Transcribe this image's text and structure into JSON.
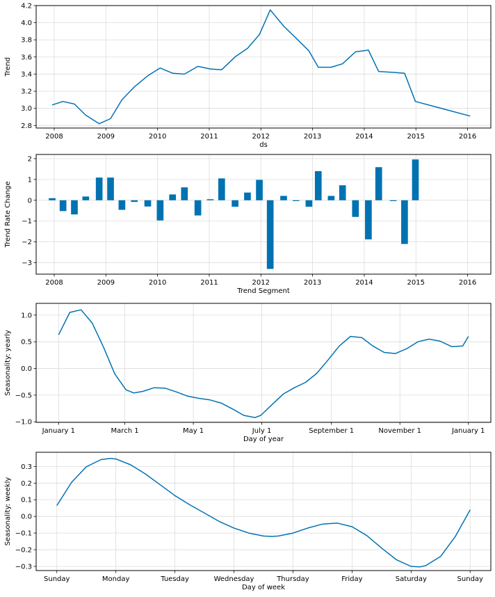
{
  "colors": {
    "series": "#0072B2",
    "grid": "#dcdcdc",
    "frame": "#000000"
  },
  "chart_data": [
    {
      "id": "trend",
      "type": "line",
      "xlabel": "ds",
      "ylabel": "Trend",
      "x_type": "year",
      "xlim": [
        2007.65,
        2016.45
      ],
      "ylim": [
        2.77,
        4.2
      ],
      "xticks": [
        2008,
        2009,
        2010,
        2011,
        2012,
        2013,
        2014,
        2015,
        2016
      ],
      "xticklabels": [
        "2008",
        "2009",
        "2010",
        "2011",
        "2012",
        "2013",
        "2014",
        "2015",
        "2016"
      ],
      "yticks": [
        2.8,
        3.0,
        3.2,
        3.4,
        3.6,
        3.8,
        4.0,
        4.2
      ],
      "yticklabels": [
        "2.8",
        "3.0",
        "3.2",
        "3.4",
        "3.6",
        "3.8",
        "4.0",
        "4.2"
      ],
      "grid": true,
      "x": [
        2007.96,
        2008.17,
        2008.39,
        2008.61,
        2008.87,
        2009.09,
        2009.31,
        2009.55,
        2009.81,
        2010.05,
        2010.29,
        2010.52,
        2010.78,
        2011.02,
        2011.24,
        2011.5,
        2011.74,
        2011.97,
        2012.18,
        2012.44,
        2012.68,
        2012.93,
        2013.11,
        2013.36,
        2013.58,
        2013.83,
        2014.08,
        2014.28,
        2014.56,
        2014.78,
        2014.99,
        2016.05
      ],
      "y": [
        3.04,
        3.08,
        3.05,
        2.92,
        2.82,
        2.88,
        3.1,
        3.25,
        3.38,
        3.47,
        3.41,
        3.4,
        3.49,
        3.46,
        3.45,
        3.6,
        3.7,
        3.86,
        4.15,
        3.96,
        3.82,
        3.67,
        3.48,
        3.48,
        3.52,
        3.66,
        3.68,
        3.43,
        3.42,
        3.41,
        3.08,
        2.91
      ]
    },
    {
      "id": "trend_rate_change",
      "type": "bar",
      "xlabel": "Trend Segment",
      "ylabel": "Trend Rate Change",
      "x_type": "year",
      "xlim": [
        2007.65,
        2016.45
      ],
      "ylim": [
        -3.55,
        2.2
      ],
      "xticks": [
        2008,
        2009,
        2010,
        2011,
        2012,
        2013,
        2014,
        2015,
        2016
      ],
      "xticklabels": [
        "2008",
        "2009",
        "2010",
        "2011",
        "2012",
        "2013",
        "2014",
        "2015",
        "2016"
      ],
      "yticks": [
        -3,
        -2,
        -1,
        0,
        1,
        2
      ],
      "yticklabels": [
        "−3",
        "−2",
        "−1",
        "0",
        "1",
        "2"
      ],
      "grid": true,
      "bar_width_years": 0.13,
      "x": [
        2007.96,
        2008.17,
        2008.39,
        2008.61,
        2008.87,
        2009.09,
        2009.31,
        2009.55,
        2009.81,
        2010.05,
        2010.29,
        2010.52,
        2010.78,
        2011.02,
        2011.24,
        2011.5,
        2011.74,
        2011.97,
        2012.18,
        2012.44,
        2012.68,
        2012.93,
        2013.11,
        2013.36,
        2013.58,
        2013.83,
        2014.08,
        2014.28,
        2014.56,
        2014.78,
        2014.99
      ],
      "values": [
        0.1,
        -0.52,
        -0.68,
        0.18,
        1.09,
        1.09,
        -0.46,
        -0.08,
        -0.3,
        -0.97,
        0.28,
        0.62,
        -0.73,
        0.05,
        1.05,
        -0.31,
        0.37,
        0.98,
        -3.3,
        0.21,
        -0.04,
        -0.31,
        1.4,
        0.21,
        0.72,
        -0.8,
        -1.88,
        1.59,
        -0.04,
        -2.1,
        1.96
      ]
    },
    {
      "id": "seasonality_yearly",
      "type": "line",
      "xlabel": "Day of year",
      "ylabel": "Seasonality: yearly",
      "x_type": "day_of_year",
      "xlim": [
        -20,
        385
      ],
      "ylim": [
        -1.01,
        1.22
      ],
      "xticks": [
        0,
        59,
        120,
        181,
        243,
        304,
        365
      ],
      "xticklabels": [
        "January 1",
        "March 1",
        "May 1",
        "July 1",
        "September 1",
        "November 1",
        "January 1"
      ],
      "yticks": [
        -1.0,
        -0.5,
        0.0,
        0.5,
        1.0
      ],
      "yticklabels": [
        "−1.0",
        "−0.5",
        "0.0",
        "0.5",
        "1.0"
      ],
      "grid": true,
      "x": [
        0,
        10,
        20,
        30,
        40,
        50,
        60,
        67,
        75,
        85,
        95,
        105,
        115,
        125,
        135,
        145,
        155,
        165,
        175,
        180,
        190,
        200,
        210,
        220,
        230,
        240,
        250,
        260,
        270,
        280,
        290,
        300,
        310,
        320,
        330,
        340,
        350,
        360,
        365
      ],
      "y": [
        0.63,
        1.05,
        1.1,
        0.85,
        0.4,
        -0.1,
        -0.4,
        -0.46,
        -0.43,
        -0.36,
        -0.37,
        -0.44,
        -0.52,
        -0.56,
        -0.59,
        -0.65,
        -0.76,
        -0.88,
        -0.92,
        -0.88,
        -0.68,
        -0.48,
        -0.36,
        -0.26,
        -0.09,
        0.16,
        0.42,
        0.6,
        0.58,
        0.42,
        0.3,
        0.28,
        0.37,
        0.5,
        0.55,
        0.51,
        0.41,
        0.42,
        0.6
      ]
    },
    {
      "id": "seasonality_weekly",
      "type": "line",
      "xlabel": "Day of week",
      "ylabel": "Seasonality: weekly",
      "x_type": "day_of_week",
      "xlim": [
        -0.35,
        7.35
      ],
      "ylim": [
        -0.325,
        0.385
      ],
      "xticks": [
        0,
        1,
        2,
        3,
        4,
        5,
        6,
        7
      ],
      "xticklabels": [
        "Sunday",
        "Monday",
        "Tuesday",
        "Wednesday",
        "Thursday",
        "Friday",
        "Saturday",
        "Sunday"
      ],
      "yticks": [
        -0.3,
        -0.2,
        -0.1,
        0.0,
        0.1,
        0.2,
        0.3
      ],
      "yticklabels": [
        "−0.3",
        "−0.2",
        "−0.1",
        "0.0",
        "0.1",
        "0.2",
        "0.3"
      ],
      "grid": true,
      "x": [
        0,
        0.25,
        0.5,
        0.75,
        0.9,
        1,
        1.25,
        1.5,
        1.75,
        2,
        2.25,
        2.5,
        2.75,
        3,
        3.25,
        3.5,
        3.65,
        3.75,
        4,
        4.25,
        4.5,
        4.75,
        5,
        5.25,
        5.5,
        5.75,
        6,
        6.15,
        6.25,
        6.5,
        6.75,
        7
      ],
      "y": [
        0.065,
        0.205,
        0.298,
        0.341,
        0.348,
        0.345,
        0.31,
        0.255,
        0.19,
        0.125,
        0.07,
        0.02,
        -0.03,
        -0.07,
        -0.1,
        -0.118,
        -0.12,
        -0.118,
        -0.1,
        -0.07,
        -0.046,
        -0.04,
        -0.062,
        -0.115,
        -0.19,
        -0.26,
        -0.3,
        -0.303,
        -0.295,
        -0.24,
        -0.12,
        0.04
      ]
    }
  ]
}
